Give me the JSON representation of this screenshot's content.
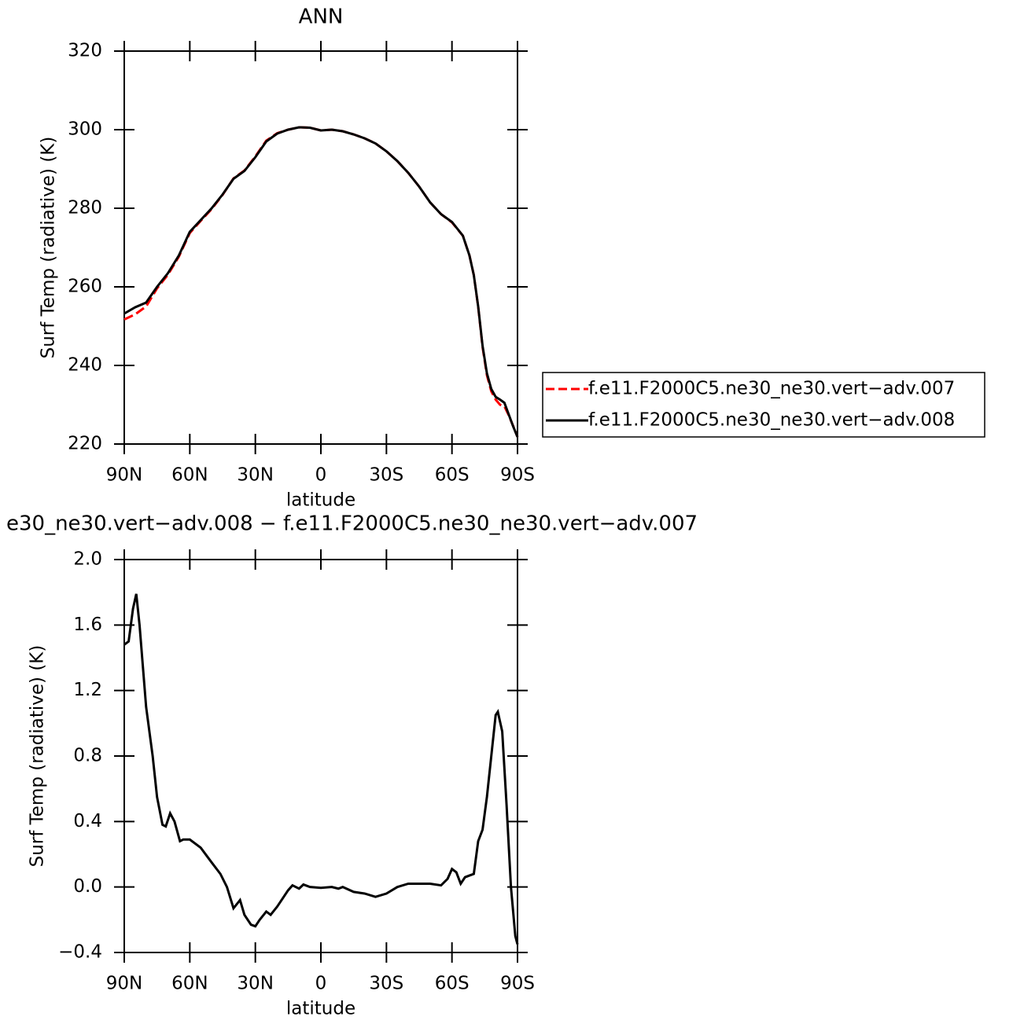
{
  "chart_data": [
    {
      "type": "line",
      "title": "ANN",
      "xlabel": "latitude",
      "ylabel": "Surf Temp (radiative) (K)",
      "x": [
        90,
        85,
        80,
        75,
        70,
        65,
        60,
        55,
        50,
        45,
        40,
        35,
        30,
        25,
        20,
        15,
        10,
        5,
        0,
        -5,
        -10,
        -15,
        -20,
        -25,
        -30,
        -35,
        -40,
        -45,
        -50,
        -55,
        -60,
        -65,
        -68,
        -70,
        -72,
        -74,
        -76,
        -78,
        -80,
        -82,
        -84,
        -86,
        -88,
        -90
      ],
      "series": [
        {
          "name": "f.e11.F2000C5.ne30_ne30.vert−adv.007",
          "color": "#ff0000",
          "linestyle": "dashed",
          "values": [
            251.7,
            253,
            255,
            259.6,
            263.1,
            267.7,
            273.7,
            276.8,
            279.8,
            283.4,
            287.6,
            289.6,
            293.2,
            297.2,
            299.1,
            300,
            300.6,
            300.5,
            299.8,
            300,
            299.6,
            298.8,
            297.8,
            296.5,
            294.5,
            292,
            289,
            285.5,
            281.5,
            278.5,
            276.4,
            273,
            268,
            263,
            254.9,
            244.7,
            237.5,
            233.4,
            231.3,
            230,
            229.6,
            227.3,
            224.6,
            221.8
          ]
        },
        {
          "name": "f.e11.F2000C5.ne30_ne30.vert−adv.008",
          "color": "#000000",
          "linestyle": "solid",
          "values": [
            253.2,
            254.8,
            256,
            260,
            263.5,
            268,
            274,
            277,
            280,
            283.5,
            287.5,
            289.5,
            293,
            297,
            299,
            300,
            300.6,
            300.5,
            299.8,
            300,
            299.6,
            298.8,
            297.8,
            296.5,
            294.5,
            292,
            289,
            285.5,
            281.5,
            278.5,
            276.5,
            273,
            268,
            263,
            255,
            245,
            238,
            234,
            232,
            231.3,
            230.5,
            227.5,
            224.5,
            221.8
          ]
        }
      ],
      "xlim": [
        90,
        -90
      ],
      "xticks": [
        {
          "value": 90,
          "label": "90N"
        },
        {
          "value": 60,
          "label": "60N"
        },
        {
          "value": 30,
          "label": "30N"
        },
        0,
        {
          "value": -30,
          "label": "30S"
        },
        {
          "value": -60,
          "label": "60S"
        },
        {
          "value": -90,
          "label": "90S"
        }
      ],
      "ylim": [
        220,
        320
      ],
      "yticks": [
        220,
        240,
        260,
        280,
        300,
        320
      ],
      "legend": "right"
    },
    {
      "type": "line",
      "title": "e30_ne30.vert−adv.008 − f.e11.F2000C5.ne30_ne30.vert−adv.007",
      "xlabel": "latitude",
      "ylabel": "Surf Temp (radiative) (K)",
      "x": [
        90,
        88,
        86,
        84.5,
        83,
        80,
        77,
        75,
        72.5,
        71,
        69,
        67,
        64.5,
        63,
        60,
        55,
        50,
        46,
        43,
        40,
        37,
        35,
        32,
        30,
        28,
        25,
        23,
        20,
        15,
        13,
        10,
        8,
        5,
        0,
        -5,
        -8,
        -10,
        -15,
        -20,
        -25,
        -30,
        -35,
        -40,
        -45,
        -50,
        -55,
        -58,
        -60,
        -62,
        -64,
        -66,
        -68,
        -70,
        -72,
        -74,
        -76,
        -78,
        -80,
        -81,
        -83,
        -85,
        -87,
        -89,
        -90
      ],
      "series": [
        {
          "color": "#000000",
          "linestyle": "solid",
          "values": [
            1.48,
            1.5,
            1.7,
            1.79,
            1.6,
            1.1,
            0.8,
            0.55,
            0.38,
            0.37,
            0.45,
            0.4,
            0.28,
            0.29,
            0.29,
            0.24,
            0.15,
            0.08,
            0.0,
            -0.13,
            -0.08,
            -0.17,
            -0.23,
            -0.24,
            -0.2,
            -0.15,
            -0.17,
            -0.12,
            -0.02,
            0.01,
            -0.01,
            0.015,
            0.0,
            -0.005,
            0.0,
            -0.01,
            0.0,
            -0.03,
            -0.04,
            -0.06,
            -0.04,
            0.0,
            0.02,
            0.02,
            0.02,
            0.01,
            0.05,
            0.11,
            0.09,
            0.02,
            0.06,
            0.07,
            0.08,
            0.28,
            0.35,
            0.55,
            0.8,
            1.05,
            1.07,
            0.95,
            0.5,
            0.0,
            -0.3,
            -0.35
          ]
        }
      ],
      "xlim": [
        90,
        -90
      ],
      "xticks": [
        {
          "value": 90,
          "label": "90N"
        },
        {
          "value": 60,
          "label": "60N"
        },
        {
          "value": 30,
          "label": "30N"
        },
        0,
        {
          "value": -30,
          "label": "30S"
        },
        {
          "value": -60,
          "label": "60S"
        },
        {
          "value": -90,
          "label": "90S"
        }
      ],
      "ylim": [
        -0.4,
        2.0
      ],
      "yticks": [
        {
          "value": -0.4,
          "label": "−0.4"
        },
        {
          "value": 0,
          "label": "0.0"
        },
        {
          "value": 0.4,
          "label": "0.4"
        },
        {
          "value": 0.8,
          "label": "0.8"
        },
        {
          "value": 1.2,
          "label": "1.2"
        },
        {
          "value": 1.6,
          "label": "1.6"
        },
        {
          "value": 2,
          "label": "2.0"
        }
      ]
    }
  ]
}
